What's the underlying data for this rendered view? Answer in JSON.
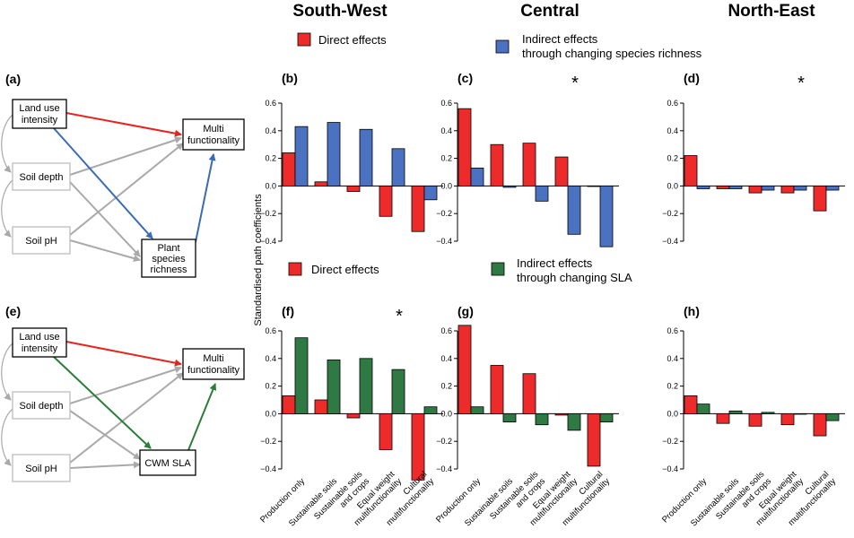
{
  "regions": [
    "South-West",
    "Central",
    "North-East"
  ],
  "ylabel": "Standardised path coefficients",
  "legend_top": {
    "direct": "Direct effects",
    "indirect": [
      "Indirect effects",
      "through changing species richness"
    ]
  },
  "legend_bottom": {
    "direct": "Direct effects",
    "indirect": [
      "Indirect effects",
      "through changing SLA"
    ]
  },
  "colors": {
    "direct": "#ee2b2b",
    "indirect_top": "#4a72c0",
    "indirect_bottom": "#2f7a44",
    "arrow_red": "#e8231d",
    "arrow_blue": "#3c6bb5",
    "arrow_green": "#2b7d3a",
    "arrow_grey": "#a9a9a9"
  },
  "diagrams": [
    {
      "label": "(a)",
      "nodes": {
        "landuse": [
          "Land use",
          "intensity"
        ],
        "soildepth": [
          "Soil depth"
        ],
        "soilph": [
          "Soil pH"
        ],
        "multi": [
          "Multi",
          "functionality"
        ],
        "mediator": [
          "Plant",
          "species",
          "richness"
        ]
      }
    },
    {
      "label": "(e)",
      "nodes": {
        "landuse": [
          "Land use",
          "intensity"
        ],
        "soildepth": [
          "Soil depth"
        ],
        "soilph": [
          "Soil pH"
        ],
        "multi": [
          "Multi",
          "functionality"
        ],
        "mediator": [
          "CWM SLA"
        ]
      }
    }
  ],
  "chart_data": [
    {
      "type": "bar",
      "panel": "(b)",
      "region": "South-West",
      "row": "top",
      "star": false,
      "categories": [
        "Production only",
        "Sustainable soils",
        "Sustainable soils and crops",
        "Equal weight multifunctionality",
        "Cultural multifunctionality"
      ],
      "series": [
        {
          "name": "Direct effects",
          "values": [
            0.24,
            0.03,
            -0.04,
            -0.22,
            -0.33
          ]
        },
        {
          "name": "Indirect effects through changing species richness",
          "values": [
            0.43,
            0.46,
            0.41,
            0.27,
            -0.1
          ]
        }
      ],
      "ylim": [
        -0.4,
        0.6
      ],
      "yticks": [
        -0.4,
        -0.2,
        0.0,
        0.2,
        0.4,
        0.6
      ],
      "ytick_labels": [
        "−0.4",
        "−0.2",
        "0.0",
        "0.2",
        "0.4",
        "0.6"
      ]
    },
    {
      "type": "bar",
      "panel": "(c)",
      "region": "Central",
      "row": "top",
      "star": true,
      "categories": [
        "Production only",
        "Sustainable soils",
        "Sustainable soils and crops",
        "Equal weight multifunctionality",
        "Cultural multifunctionality"
      ],
      "series": [
        {
          "name": "Direct effects",
          "values": [
            0.56,
            0.3,
            0.31,
            0.21,
            0.0
          ]
        },
        {
          "name": "Indirect effects through changing species richness",
          "values": [
            0.13,
            -0.01,
            -0.11,
            -0.35,
            -0.44
          ]
        }
      ],
      "ylim": [
        -0.4,
        0.6
      ],
      "yticks": [
        -0.4,
        -0.2,
        0.0,
        0.2,
        0.4,
        0.6
      ],
      "ytick_labels": [
        "−0.4",
        "−0.2",
        "0.0",
        "0.2",
        "0.4",
        "0.6"
      ]
    },
    {
      "type": "bar",
      "panel": "(d)",
      "region": "North-East",
      "row": "top",
      "star": true,
      "categories": [
        "Production only",
        "Sustainable soils",
        "Sustainable soils and crops",
        "Equal weight multifunctionality",
        "Cultural multifunctionality"
      ],
      "series": [
        {
          "name": "Direct effects",
          "values": [
            0.22,
            -0.02,
            -0.05,
            -0.05,
            -0.18
          ]
        },
        {
          "name": "Indirect effects through changing species richness",
          "values": [
            -0.02,
            -0.02,
            -0.03,
            -0.03,
            -0.03
          ]
        }
      ],
      "ylim": [
        -0.4,
        0.6
      ],
      "yticks": [
        -0.4,
        -0.2,
        0.0,
        0.2,
        0.4,
        0.6
      ],
      "ytick_labels": [
        "−0.4",
        "−0.2",
        "0.0",
        "0.2",
        "0.4",
        "0.6"
      ]
    },
    {
      "type": "bar",
      "panel": "(f)",
      "region": "South-West",
      "row": "bottom",
      "star": true,
      "categories": [
        "Production only",
        "Sustainable soils",
        "Sustainable soils and crops",
        "Equal weight multifunctionality",
        "Cultural multifunctionality"
      ],
      "series": [
        {
          "name": "Direct effects",
          "values": [
            0.13,
            0.1,
            -0.03,
            -0.26,
            -0.48
          ]
        },
        {
          "name": "Indirect effects through changing SLA",
          "values": [
            0.55,
            0.39,
            0.4,
            0.32,
            0.05
          ]
        }
      ],
      "ylim": [
        -0.4,
        0.6
      ],
      "yticks": [
        -0.4,
        -0.2,
        0.0,
        0.2,
        0.4,
        0.6
      ],
      "ytick_labels": [
        "−0.4",
        "−0.2",
        "0.0",
        "0.2",
        "0.4",
        "0.6"
      ]
    },
    {
      "type": "bar",
      "panel": "(g)",
      "region": "Central",
      "row": "bottom",
      "star": false,
      "categories": [
        "Production only",
        "Sustainable soils",
        "Sustainable soils and crops",
        "Equal weight multifunctionality",
        "Cultural multifunctionality"
      ],
      "series": [
        {
          "name": "Direct effects",
          "values": [
            0.64,
            0.35,
            0.29,
            -0.01,
            -0.38
          ]
        },
        {
          "name": "Indirect effects through changing SLA",
          "values": [
            0.05,
            -0.06,
            -0.08,
            -0.12,
            -0.06
          ]
        }
      ],
      "ylim": [
        -0.4,
        0.6
      ],
      "yticks": [
        -0.4,
        -0.2,
        0.0,
        0.2,
        0.4,
        0.6
      ],
      "ytick_labels": [
        "−0.4",
        "−0.2",
        "0.0",
        "0.2",
        "0.4",
        "0.6"
      ]
    },
    {
      "type": "bar",
      "panel": "(h)",
      "region": "North-East",
      "row": "bottom",
      "star": false,
      "categories": [
        "Production only",
        "Sustainable soils",
        "Sustainable soils and crops",
        "Equal weight multifunctionality",
        "Cultural multifunctionality"
      ],
      "series": [
        {
          "name": "Direct effects",
          "values": [
            0.13,
            -0.07,
            -0.09,
            -0.08,
            -0.16
          ]
        },
        {
          "name": "Indirect effects through changing SLA",
          "values": [
            0.07,
            0.02,
            0.01,
            0.0,
            -0.05
          ]
        }
      ],
      "ylim": [
        -0.4,
        0.6
      ],
      "yticks": [
        -0.4,
        -0.2,
        0.0,
        0.2,
        0.4,
        0.6
      ],
      "ytick_labels": [
        "−0.4",
        "−0.2",
        "0.0",
        "0.2",
        "0.4",
        "0.6"
      ]
    }
  ],
  "x_labels": [
    [
      "Production only"
    ],
    [
      "Sustainable soils"
    ],
    [
      "Sustainable soils",
      "and crops"
    ],
    [
      "Equal weight",
      "multifunctionality"
    ],
    [
      "Cultural",
      "multifunctionality"
    ]
  ],
  "star_symbol": "*"
}
